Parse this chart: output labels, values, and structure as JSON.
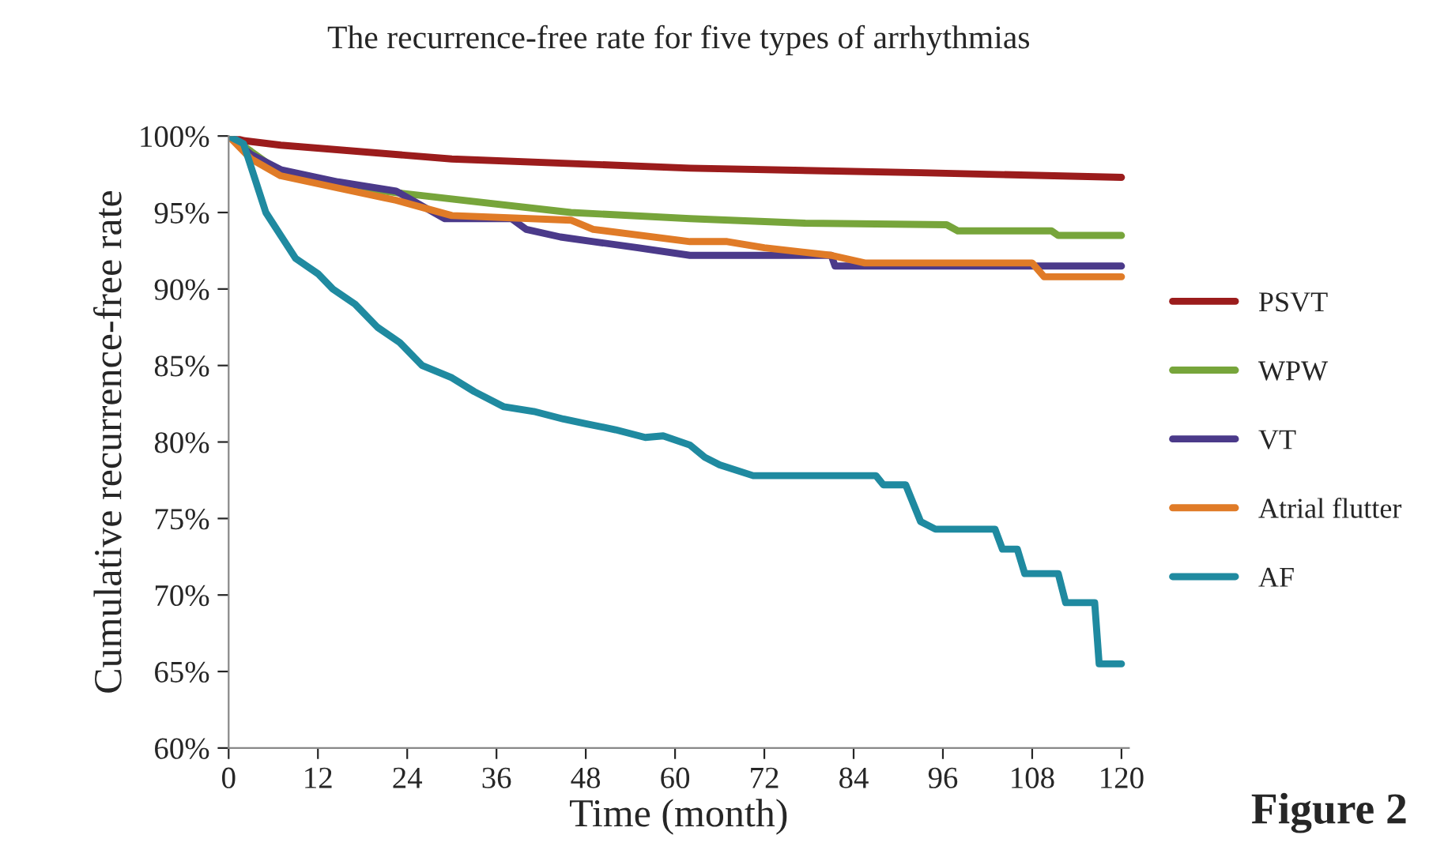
{
  "chart_data": {
    "type": "line",
    "title": "The recurrence-free rate for five types of arrhythmias",
    "xlabel": "Time (month)",
    "ylabel": "Cumulative recurrence-free rate",
    "xlim": [
      0,
      121
    ],
    "xticks": [
      0,
      12,
      24,
      36,
      48,
      60,
      72,
      84,
      96,
      108,
      120
    ],
    "ylim": [
      60,
      100
    ],
    "yticks": [
      {
        "value": 60,
        "label": "60%"
      },
      {
        "value": 65,
        "label": "65%"
      },
      {
        "value": 70,
        "label": "70%"
      },
      {
        "value": 75,
        "label": "75%"
      },
      {
        "value": 80,
        "label": "80%"
      },
      {
        "value": 85,
        "label": "85%"
      },
      {
        "value": 90,
        "label": "90%"
      },
      {
        "value": 95,
        "label": "95%"
      },
      {
        "value": 100,
        "label": "100%"
      }
    ],
    "grid": false,
    "legend": "right",
    "marker": "none",
    "line_style": "solid",
    "annotations": [
      "Figure 2"
    ],
    "series": [
      {
        "name": "PSVT",
        "color": "#9b1c1c",
        "x": [
          0,
          2,
          7,
          30,
          62,
          93,
          120
        ],
        "values": [
          100,
          99.7,
          99.4,
          98.5,
          97.9,
          97.6,
          97.3
        ]
      },
      {
        "name": "WPW",
        "color": "#77a53b",
        "x": [
          0,
          3,
          7,
          14,
          22.5,
          46,
          62,
          77.5,
          96.5,
          98,
          110.6,
          111.5,
          120
        ],
        "values": [
          100,
          99,
          97.6,
          96.8,
          96.3,
          95.0,
          94.6,
          94.3,
          94.2,
          93.8,
          93.8,
          93.5,
          93.5
        ]
      },
      {
        "name": "VT",
        "color": "#4b3a8a",
        "x": [
          0,
          3,
          7,
          14.7,
          22.5,
          29,
          38,
          40,
          44.6,
          49,
          55,
          62,
          81,
          81.5,
          120
        ],
        "values": [
          100,
          98.8,
          97.8,
          97.0,
          96.4,
          94.6,
          94.6,
          93.9,
          93.4,
          93.1,
          92.7,
          92.2,
          92.2,
          91.5,
          91.5
        ]
      },
      {
        "name": "Atrial flutter",
        "color": "#e07b27",
        "x": [
          0,
          3,
          7,
          14.7,
          22.5,
          30,
          46,
          49,
          62,
          67,
          72,
          81,
          85.5,
          108,
          109.6,
          120
        ],
        "values": [
          100,
          98.5,
          97.4,
          96.6,
          95.8,
          94.8,
          94.5,
          93.9,
          93.1,
          93.1,
          92.7,
          92.2,
          91.7,
          91.7,
          90.8,
          90.8
        ]
      },
      {
        "name": "AF",
        "color": "#1f8aa0",
        "x": [
          0,
          2,
          3,
          5,
          7,
          9,
          12,
          14,
          17,
          20,
          23,
          26,
          30,
          33,
          37,
          41,
          45,
          48,
          52,
          56,
          58.4,
          62,
          64,
          66,
          70.5,
          87,
          88,
          91,
          93,
          95,
          103,
          104,
          106,
          107,
          111.5,
          112.5,
          116.4,
          117,
          120
        ],
        "values": [
          100,
          99.5,
          98,
          95,
          93.5,
          92,
          91,
          90,
          89,
          87.5,
          86.5,
          85,
          84.2,
          83.3,
          82.3,
          82,
          81.5,
          81.2,
          80.8,
          80.3,
          80.4,
          79.8,
          79,
          78.5,
          77.8,
          77.8,
          77.2,
          77.2,
          74.8,
          74.3,
          74.3,
          73.0,
          73.0,
          71.4,
          71.4,
          69.5,
          69.5,
          65.5,
          65.5
        ]
      }
    ]
  }
}
